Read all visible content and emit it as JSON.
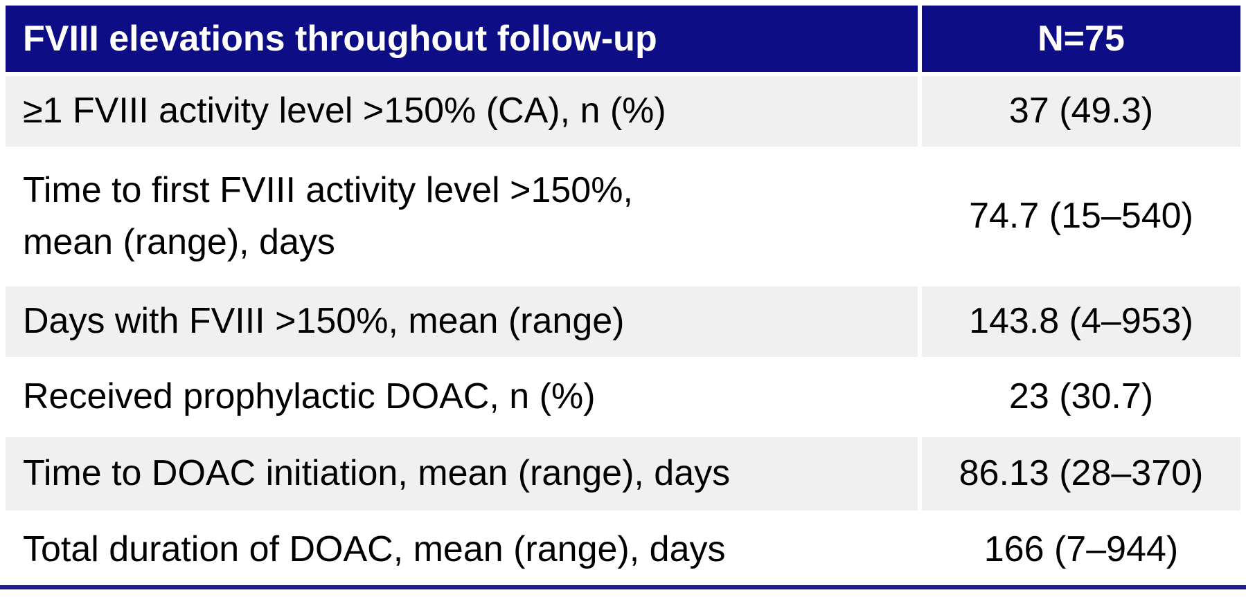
{
  "table": {
    "title": "FVIII elevations table",
    "header": {
      "col1": "FVIII elevations throughout follow-up",
      "col2": "N=75"
    },
    "rows": [
      {
        "label": "≥1 FVIII activity level >150% (CA), n (%)",
        "value": "37 (49.3)"
      },
      {
        "label": "Time to first FVIII activity level >150%,\nmean (range), days",
        "value": "74.7 (15–540)"
      },
      {
        "label": "Days with FVIII >150%, mean (range)",
        "value": "143.8 (4–953)"
      },
      {
        "label": "Received prophylactic DOAC, n (%)",
        "value": "23 (30.7)"
      },
      {
        "label": "Time to DOAC initiation, mean (range), days",
        "value": "86.13 (28–370)"
      },
      {
        "label": "Total duration of DOAC, mean (range), days",
        "value": "166 (7–944)"
      }
    ],
    "colors": {
      "header_bg": "#0d0d85",
      "header_text": "#ffffff",
      "row_alt_bg": "#f0f0f0",
      "row_bg": "#ffffff",
      "body_text": "#000000",
      "bottom_rule": "#1e1e96"
    }
  }
}
